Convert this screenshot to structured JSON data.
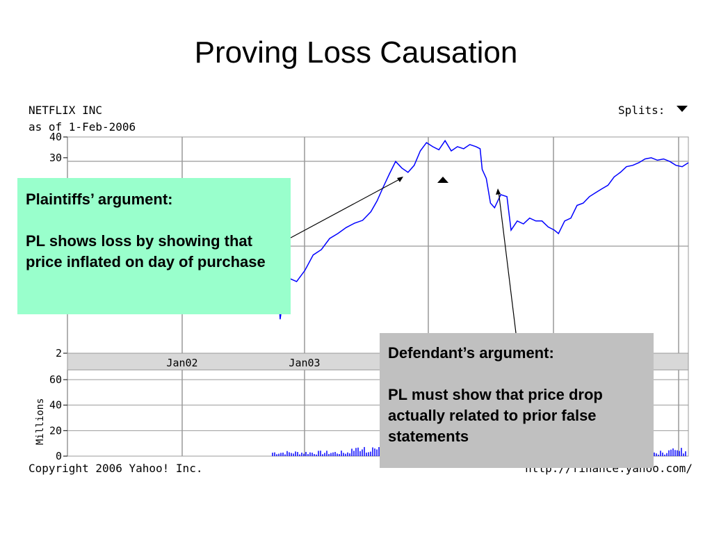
{
  "slide": {
    "title": "Proving Loss Causation"
  },
  "chart": {
    "company": "NETFLIX INC",
    "as_of": "as of 1-Feb-2006",
    "splits_label": "Splits:",
    "splits_icon": "triangle-down-icon",
    "copyright": "Copyright 2006 Yahoo! Inc.",
    "source_url": "http://finance.yahoo.com/",
    "volume_axis_label": "Millions",
    "line_color": "#0000ff",
    "grid_color": "#999999",
    "band_color": "#d8d8d8"
  },
  "chart_data": {
    "type": "line",
    "title": "NETFLIX INC",
    "price_axis": {
      "scale": "log",
      "ticks": [
        40,
        30,
        2
      ],
      "ylim": [
        2,
        40
      ]
    },
    "x_ticks": [
      "Jan02",
      "Jan03"
    ],
    "series": [
      {
        "values": [
          [
            0.0,
            8.0
          ],
          [
            0.01,
            3.2
          ],
          [
            0.02,
            4.8
          ],
          [
            0.035,
            5.6
          ],
          [
            0.05,
            5.4
          ],
          [
            0.07,
            6.3
          ],
          [
            0.09,
            7.8
          ],
          [
            0.11,
            8.4
          ],
          [
            0.13,
            9.8
          ],
          [
            0.15,
            10.5
          ],
          [
            0.17,
            11.4
          ],
          [
            0.19,
            12.1
          ],
          [
            0.21,
            12.6
          ],
          [
            0.23,
            14.2
          ],
          [
            0.245,
            16.5
          ],
          [
            0.26,
            20.0
          ],
          [
            0.275,
            24.0
          ],
          [
            0.29,
            28.5
          ],
          [
            0.305,
            26.0
          ],
          [
            0.32,
            24.5
          ],
          [
            0.335,
            27.0
          ],
          [
            0.35,
            33.0
          ],
          [
            0.365,
            37.0
          ],
          [
            0.38,
            35.0
          ],
          [
            0.395,
            33.5
          ],
          [
            0.41,
            38.0
          ],
          [
            0.425,
            33.0
          ],
          [
            0.44,
            35.0
          ],
          [
            0.455,
            34.0
          ],
          [
            0.47,
            36.0
          ],
          [
            0.485,
            35.0
          ],
          [
            0.495,
            34.0
          ],
          [
            0.5,
            25.5
          ],
          [
            0.51,
            22.5
          ],
          [
            0.52,
            16.0
          ],
          [
            0.53,
            15.0
          ],
          [
            0.545,
            18.0
          ],
          [
            0.56,
            17.5
          ],
          [
            0.57,
            11.0
          ],
          [
            0.585,
            12.5
          ],
          [
            0.6,
            12.0
          ],
          [
            0.615,
            13.0
          ],
          [
            0.63,
            12.5
          ],
          [
            0.645,
            12.5
          ],
          [
            0.66,
            11.5
          ],
          [
            0.675,
            11.0
          ],
          [
            0.685,
            10.5
          ],
          [
            0.7,
            12.5
          ],
          [
            0.715,
            13.0
          ],
          [
            0.73,
            15.5
          ],
          [
            0.745,
            16.0
          ],
          [
            0.76,
            17.5
          ],
          [
            0.775,
            18.5
          ],
          [
            0.79,
            19.5
          ],
          [
            0.805,
            20.5
          ],
          [
            0.82,
            23.0
          ],
          [
            0.835,
            24.5
          ],
          [
            0.85,
            26.5
          ],
          [
            0.865,
            27.0
          ],
          [
            0.88,
            28.0
          ],
          [
            0.895,
            29.5
          ],
          [
            0.91,
            30.0
          ],
          [
            0.925,
            29.0
          ],
          [
            0.94,
            29.5
          ],
          [
            0.955,
            28.5
          ],
          [
            0.97,
            27.0
          ],
          [
            0.985,
            26.5
          ],
          [
            1.0,
            28.0
          ]
        ]
      }
    ],
    "volume_axis": {
      "label": "Millions",
      "ticks": [
        60,
        40,
        20,
        0
      ],
      "ylim": [
        0,
        60
      ]
    }
  },
  "callouts": {
    "plaintiff": {
      "heading": "Plaintiffs’ argument:",
      "body": "PL shows loss by showing that price inflated on day of purchase"
    },
    "defendant": {
      "heading": "Defendant’s argument:",
      "body": "PL must show that price drop actually related to prior false statements"
    }
  }
}
